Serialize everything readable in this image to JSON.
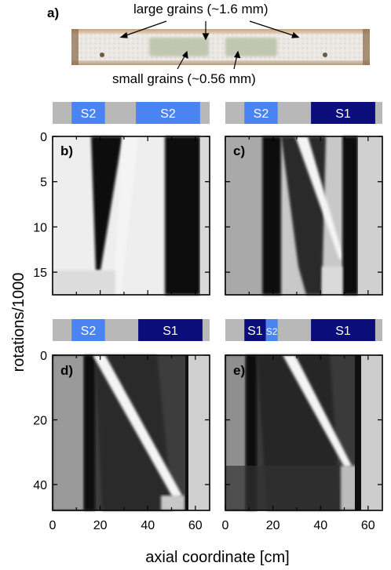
{
  "figure": {
    "panel_a": {
      "label": "a)",
      "annotation_large": "large grains (~1.6 mm)",
      "annotation_small": "small grains (~0.56 mm)"
    },
    "panels": [
      {
        "label": "b)",
        "segments": [
          {
            "label": "S2",
            "x0": 8,
            "x1": 22,
            "color": "#4a84f2"
          },
          {
            "label": "S2",
            "x0": 35,
            "x1": 62,
            "color": "#4a84f2"
          }
        ]
      },
      {
        "label": "c)",
        "segments": [
          {
            "label": "S2",
            "x0": 8,
            "x1": 22,
            "color": "#4a84f2"
          },
          {
            "label": "S1",
            "x0": 36,
            "x1": 63,
            "color": "#0b0d7a"
          }
        ]
      },
      {
        "label": "d)",
        "segments": [
          {
            "label": "S2",
            "x0": 8,
            "x1": 22,
            "color": "#4a84f2"
          },
          {
            "label": "S1",
            "x0": 36,
            "x1": 63,
            "color": "#0b0d7a"
          }
        ]
      },
      {
        "label": "e)",
        "segments": [
          {
            "label": "S1",
            "x0": 8,
            "x1": 17,
            "color": "#0b0d7a"
          },
          {
            "label": "S2",
            "x0": 17,
            "x1": 22,
            "color": "#4a84f2"
          },
          {
            "label": "S1",
            "x0": 36,
            "x1": 63,
            "color": "#0b0d7a"
          }
        ]
      }
    ],
    "ylabel": "rotations/1000",
    "xlabel": "axial coordinate [cm]",
    "top_row_yticks": [
      "0",
      "5",
      "10",
      "15"
    ],
    "bottom_row_yticks": [
      "0",
      "20",
      "40"
    ],
    "xticks": [
      "0",
      "20",
      "40",
      "60"
    ],
    "colors": {
      "tube_gray": "#b8b8b8",
      "s2_light_blue": "#4a84f2",
      "s1_dark_blue": "#0b0d7a"
    }
  }
}
